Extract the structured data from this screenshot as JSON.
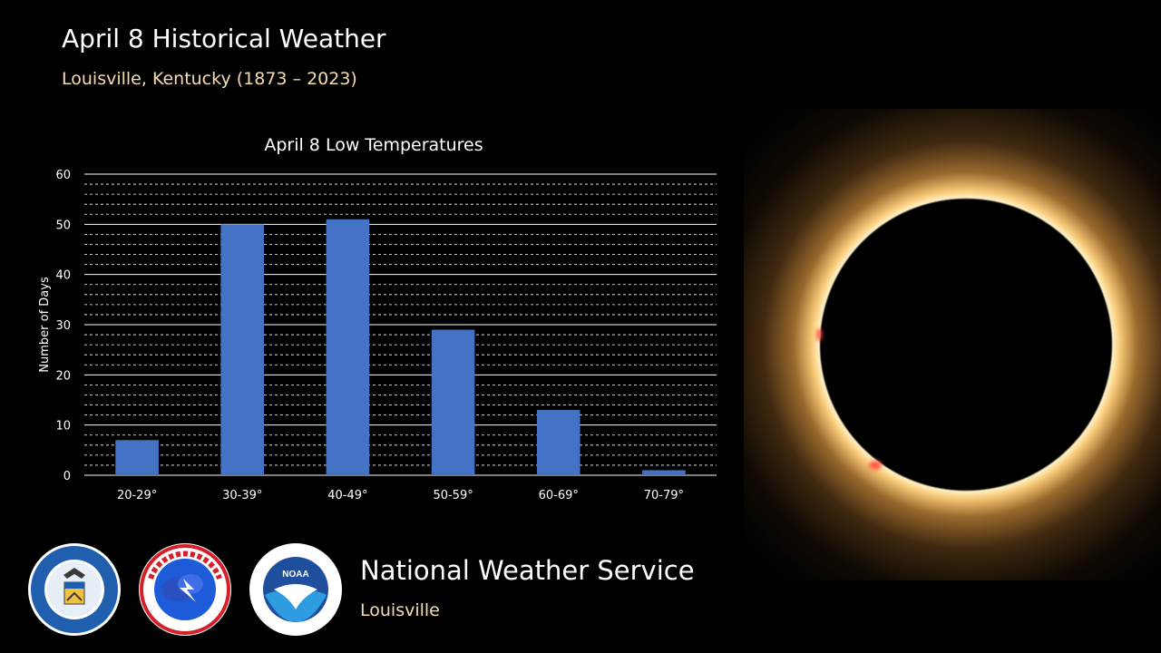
{
  "header": {
    "title": "April 8 Historical Weather",
    "subtitle": "Louisville, Kentucky (1873 – 2023)"
  },
  "chart_data": {
    "type": "bar",
    "title": "April 8 Low Temperatures",
    "xlabel": "",
    "ylabel": "Number of Days",
    "categories": [
      "20-29°",
      "30-39°",
      "40-49°",
      "50-59°",
      "60-69°",
      "70-79°"
    ],
    "values": [
      7,
      50,
      51,
      29,
      13,
      1
    ],
    "ylim": [
      0,
      60
    ],
    "yticks": [
      0,
      10,
      20,
      30,
      40,
      50,
      60
    ],
    "minor_grid_step": 2,
    "grid": true,
    "legend": "none",
    "bar_color": "#4472c4"
  },
  "footer": {
    "org_name": "National Weather Service",
    "office": "Louisville",
    "logos": [
      "department-of-commerce-seal",
      "national-weather-service-logo",
      "noaa-logo"
    ]
  }
}
